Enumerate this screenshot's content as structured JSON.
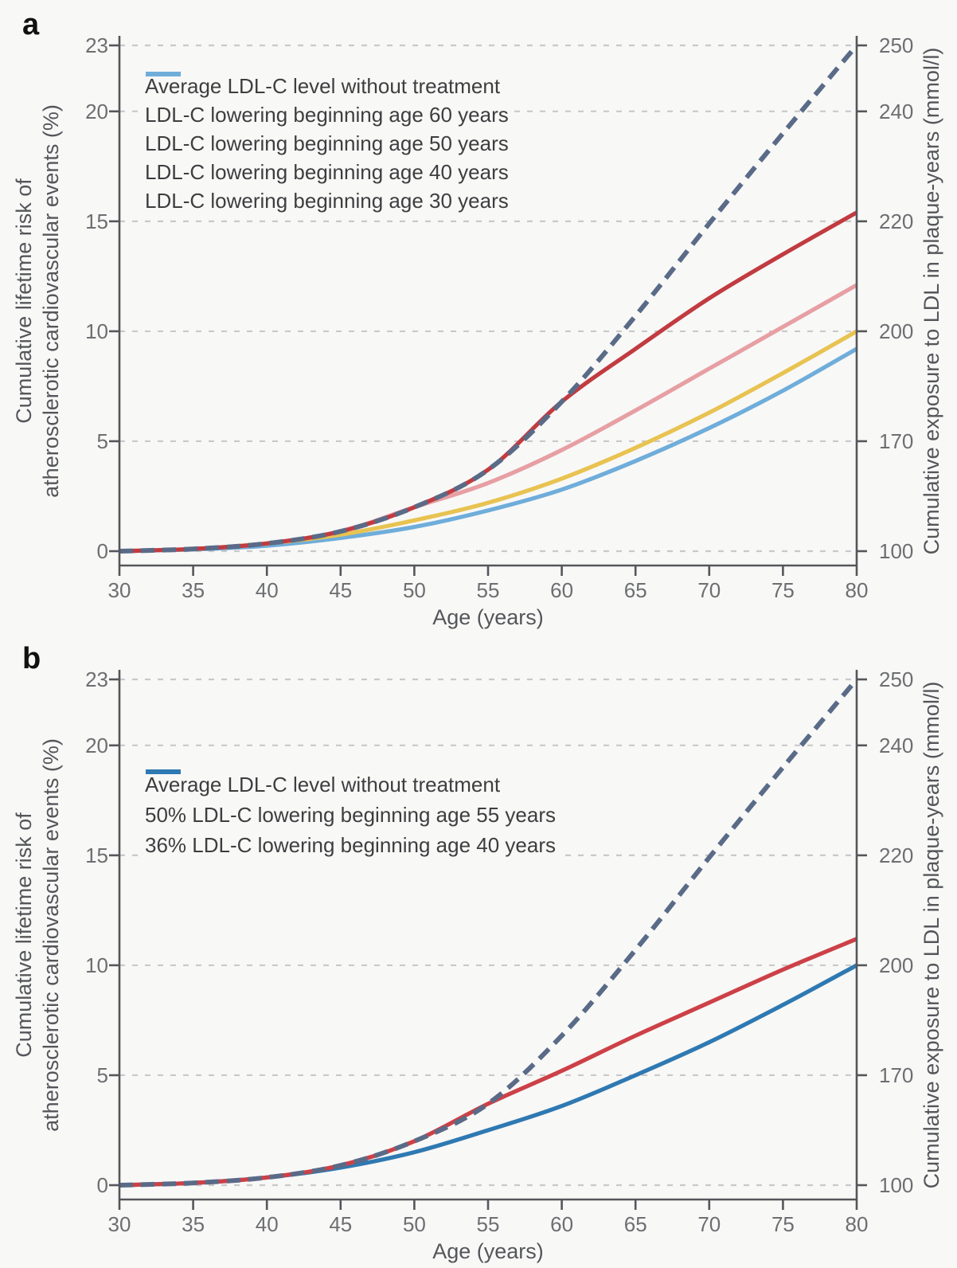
{
  "figure": {
    "background": "#f8f8f7",
    "axis_color": "#55565a",
    "grid_color": "#c9c9c9",
    "tick_label_color": "#6d6e71",
    "axis_title_color": "#55565a"
  },
  "chart_data": [
    {
      "id": "a",
      "panel_label": "a",
      "type": "line",
      "title": "",
      "xlabel": "Age (years)",
      "ylabel_left_lines": [
        "Cumulative lifetime risk of",
        "atherosclerotic cardiovascular events (%)"
      ],
      "ylabel_right": "Cumulative exposure to LDL in plaque-years (mmol/l)",
      "xlim": [
        30,
        80
      ],
      "x_ticks": [
        30,
        35,
        40,
        45,
        50,
        55,
        60,
        65,
        70,
        75,
        80
      ],
      "ylim_left": [
        0,
        23
      ],
      "y_ticks_left": [
        0,
        5,
        10,
        15,
        20,
        23
      ],
      "y_ticks_right": [
        {
          "at": 0,
          "label": "100"
        },
        {
          "at": 5,
          "label": "170"
        },
        {
          "at": 10,
          "label": "200"
        },
        {
          "at": 15,
          "label": "220"
        },
        {
          "at": 20,
          "label": "240"
        },
        {
          "at": 23,
          "label": "250"
        }
      ],
      "grid": "horizontal-dashed",
      "legend_position": "upper-left",
      "series": [
        {
          "name": "Average LDL-C level without treatment",
          "color": "#5a6b88",
          "dash": true,
          "x": [
            30,
            35,
            40,
            45,
            50,
            55,
            60,
            65,
            70,
            75,
            80
          ],
          "y": [
            0,
            0.1,
            0.35,
            0.9,
            2.0,
            3.7,
            6.8,
            10.7,
            14.9,
            19.0,
            23.0
          ]
        },
        {
          "name": "LDL-C lowering beginning age 60 years",
          "color": "#c13b40",
          "dash": false,
          "x": [
            30,
            35,
            40,
            45,
            50,
            55,
            60,
            65,
            70,
            75,
            80
          ],
          "y": [
            0,
            0.1,
            0.35,
            0.9,
            2.0,
            3.7,
            6.8,
            9.2,
            11.5,
            13.5,
            15.4
          ]
        },
        {
          "name": "LDL-C lowering beginning age 50 years",
          "color": "#e79fa3",
          "dash": false,
          "x": [
            30,
            35,
            40,
            45,
            50,
            55,
            60,
            65,
            70,
            75,
            80
          ],
          "y": [
            0,
            0.1,
            0.35,
            0.9,
            2.0,
            3.1,
            4.6,
            6.4,
            8.3,
            10.2,
            12.1
          ]
        },
        {
          "name": "LDL-C lowering beginning age 40 years",
          "color": "#e8c351",
          "dash": false,
          "x": [
            30,
            35,
            40,
            45,
            50,
            55,
            60,
            65,
            70,
            75,
            80
          ],
          "y": [
            0,
            0.1,
            0.35,
            0.75,
            1.4,
            2.2,
            3.3,
            4.7,
            6.3,
            8.1,
            10.0
          ]
        },
        {
          "name": "LDL-C lowering beginning age 30 years",
          "color": "#6fadda",
          "dash": false,
          "x": [
            30,
            35,
            40,
            45,
            50,
            55,
            60,
            65,
            70,
            75,
            80
          ],
          "y": [
            0,
            0.08,
            0.25,
            0.6,
            1.1,
            1.85,
            2.8,
            4.1,
            5.6,
            7.3,
            9.2
          ]
        }
      ]
    },
    {
      "id": "b",
      "panel_label": "b",
      "type": "line",
      "title": "",
      "xlabel": "Age (years)",
      "ylabel_left_lines": [
        "Cumulative lifetime risk of",
        "atherosclerotic cardiovascular events (%)"
      ],
      "ylabel_right": "Cumulative exposure to LDL in plaque-years (mmol/l)",
      "xlim": [
        30,
        80
      ],
      "x_ticks": [
        30,
        35,
        40,
        45,
        50,
        55,
        60,
        65,
        70,
        75,
        80
      ],
      "ylim_left": [
        0,
        23
      ],
      "y_ticks_left": [
        0,
        5,
        10,
        15,
        20,
        23
      ],
      "y_ticks_right": [
        {
          "at": 0,
          "label": "100"
        },
        {
          "at": 5,
          "label": "170"
        },
        {
          "at": 10,
          "label": "200"
        },
        {
          "at": 15,
          "label": "220"
        },
        {
          "at": 20,
          "label": "240"
        },
        {
          "at": 23,
          "label": "250"
        }
      ],
      "grid": "horizontal-dashed",
      "legend_position": "upper-left",
      "series": [
        {
          "name": "Average LDL-C level without treatment",
          "color": "#5a6b88",
          "dash": true,
          "x": [
            30,
            35,
            40,
            45,
            50,
            55,
            60,
            65,
            70,
            75,
            80
          ],
          "y": [
            0,
            0.1,
            0.35,
            0.9,
            2.0,
            3.7,
            6.8,
            10.7,
            14.9,
            19.0,
            23.0
          ]
        },
        {
          "name": "50% LDL-C lowering beginning age 55 years",
          "color": "#cc4147",
          "dash": false,
          "x": [
            30,
            35,
            40,
            45,
            50,
            55,
            60,
            65,
            70,
            75,
            80
          ],
          "y": [
            0,
            0.1,
            0.35,
            0.9,
            2.0,
            3.7,
            5.2,
            6.8,
            8.3,
            9.8,
            11.2
          ]
        },
        {
          "name": "36% LDL-C lowering beginning age 40 years",
          "color": "#2f79b2",
          "dash": false,
          "x": [
            30,
            35,
            40,
            45,
            50,
            55,
            60,
            65,
            70,
            75,
            80
          ],
          "y": [
            0,
            0.1,
            0.35,
            0.8,
            1.5,
            2.5,
            3.6,
            5.0,
            6.5,
            8.2,
            10.0
          ]
        }
      ]
    }
  ]
}
